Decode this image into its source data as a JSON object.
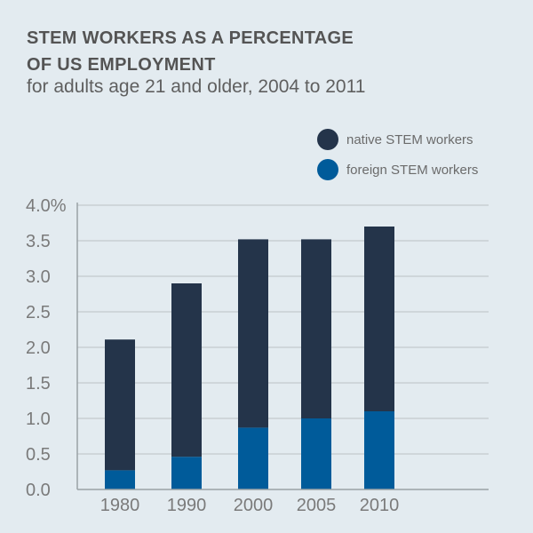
{
  "chart_data": {
    "type": "bar",
    "stacked": true,
    "title_line1": "STEM WORKERS AS A PERCENTAGE",
    "title_line2": "OF US EMPLOYMENT",
    "subtitle": "for adults age 21 and older, 2004 to 2011",
    "categories": [
      "1980",
      "1990",
      "2000",
      "2005",
      "2010"
    ],
    "series": [
      {
        "name": "foreign STEM workers",
        "color": "#005b9a",
        "values": [
          0.27,
          0.46,
          0.87,
          1.0,
          1.1
        ]
      },
      {
        "name": "native STEM workers",
        "color": "#24344a",
        "values": [
          1.84,
          2.44,
          2.65,
          2.52,
          2.6
        ]
      }
    ],
    "legend": [
      "native STEM workers",
      "foreign STEM workers"
    ],
    "yticks": [
      "0.0",
      "0.5",
      "1.0",
      "1.5",
      "2.0",
      "2.5",
      "3.0",
      "3.5",
      "4.0%"
    ],
    "ylim": [
      0,
      4.0
    ],
    "grid": true,
    "legend_placement": "top-right",
    "xlabel": "",
    "ylabel": ""
  }
}
